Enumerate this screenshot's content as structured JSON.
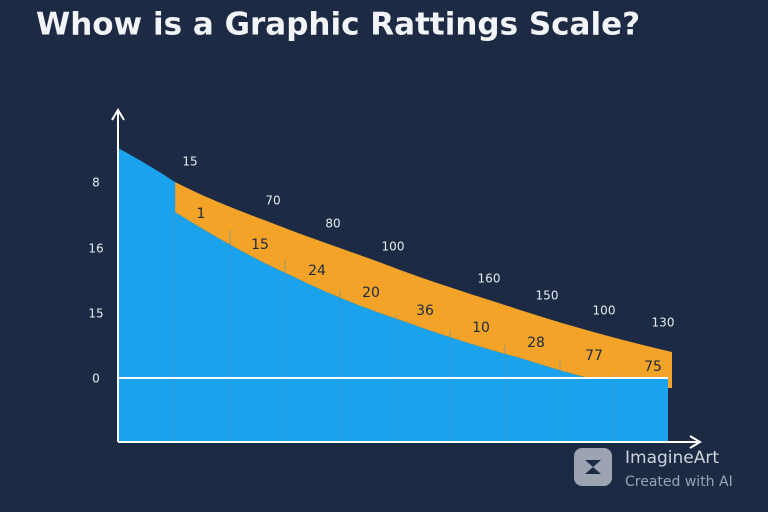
{
  "title": "Whow is a Graphic Rattings Scale?",
  "y_labels": [
    "8",
    "16",
    "15",
    "0"
  ],
  "top_labels": [
    "15",
    "70",
    "80",
    "100",
    "160",
    "150",
    "100",
    "130"
  ],
  "band_labels": [
    "1",
    "15",
    "24",
    "20",
    "36",
    "10",
    "28",
    "77",
    "75"
  ],
  "watermark": {
    "name": "ImagineArt",
    "note": "Created with AI"
  }
}
